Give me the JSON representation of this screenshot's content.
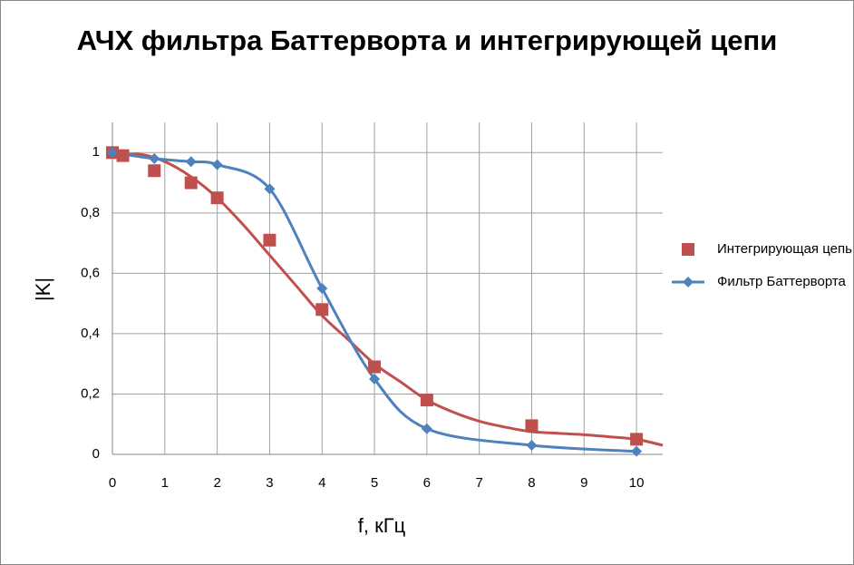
{
  "chart_data": {
    "type": "scatter",
    "title": "АЧХ фильтра Баттерворта и интегрирующей цепи",
    "x_label": "f, кГц",
    "y_label": "|K|",
    "xlim": [
      0,
      10.5
    ],
    "ylim": [
      0,
      1.1
    ],
    "xticks": [
      0,
      1,
      2,
      3,
      4,
      5,
      6,
      7,
      8,
      9,
      10
    ],
    "yticks": [
      0,
      {
        "value": 0.2,
        "label": "0,2"
      },
      {
        "value": 0.4,
        "label": "0,4"
      },
      {
        "value": 0.6,
        "label": "0,6"
      },
      {
        "value": 0.8,
        "label": "0,8"
      },
      1
    ],
    "grid": true,
    "series": [
      {
        "name": "Интегрирующая цепь",
        "color": "#c0504d",
        "marker": "square",
        "line": "trend",
        "x": [
          0,
          0.2,
          0.8,
          1.5,
          2,
          3,
          4,
          5,
          6,
          8,
          10
        ],
        "values": [
          1,
          0.99,
          0.94,
          0.9,
          0.85,
          0.71,
          0.48,
          0.29,
          0.18,
          0.095,
          0.05
        ],
        "trend": {
          "x": [
            0,
            0.5,
            1,
            1.5,
            2,
            2.5,
            3,
            3.5,
            4,
            4.5,
            5,
            5.5,
            6,
            6.5,
            7,
            7.5,
            8,
            8.5,
            9,
            9.5,
            10,
            10.5
          ],
          "values": [
            0.985,
            0.995,
            0.97,
            0.92,
            0.85,
            0.76,
            0.66,
            0.56,
            0.46,
            0.38,
            0.3,
            0.24,
            0.18,
            0.14,
            0.11,
            0.09,
            0.075,
            0.07,
            0.065,
            0.058,
            0.05,
            0.03
          ]
        }
      },
      {
        "name": "Фильтр Баттерворта",
        "color": "#4f81bd",
        "marker": "diamond",
        "line": "smooth",
        "x": [
          0,
          0.8,
          1.5,
          2,
          3,
          4,
          5,
          6,
          8,
          10
        ],
        "values": [
          1,
          0.98,
          0.97,
          0.96,
          0.88,
          0.55,
          0.25,
          0.085,
          0.03,
          0.01
        ]
      }
    ]
  }
}
